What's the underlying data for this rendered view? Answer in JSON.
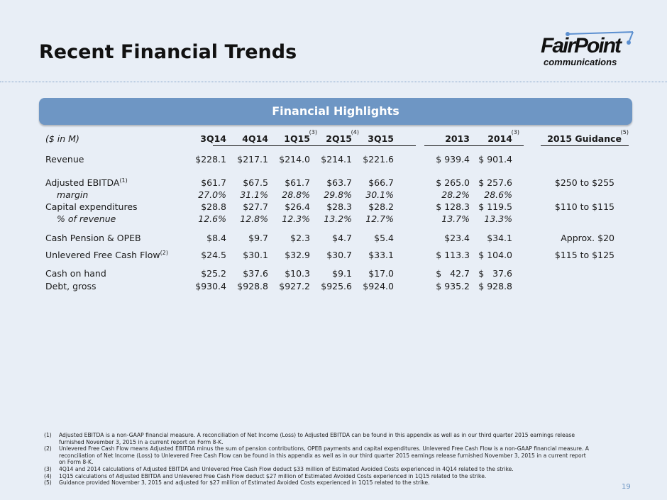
{
  "title": "Recent Financial Trends",
  "logo": {
    "text_main": "FairPoint",
    "text_sub": "communications",
    "color_accent": "#5b8fd0"
  },
  "banner": "Financial Highlights",
  "table": {
    "unit_label": "($ in M)",
    "columns": [
      {
        "label": "3Q14",
        "note": ""
      },
      {
        "label": "4Q14",
        "note": ""
      },
      {
        "label": "1Q15",
        "note": "(3)"
      },
      {
        "label": "2Q15",
        "note": "(4)"
      },
      {
        "label": "3Q15",
        "note": ""
      },
      {
        "label": "2013",
        "note": ""
      },
      {
        "label": "2014",
        "note": "(3)"
      },
      {
        "label": "2015 Guidance",
        "note": "(5)"
      }
    ],
    "rows": [
      {
        "label": "Revenue",
        "note": "",
        "italic": false,
        "values": [
          "$228.1",
          "$217.1",
          "$214.0",
          "$214.1",
          "$221.6",
          "$ 939.4",
          "$ 901.4",
          ""
        ]
      },
      {
        "label": "Adjusted EBITDA",
        "note": "(1)",
        "italic": false,
        "values": [
          "$61.7",
          "$67.5",
          "$61.7",
          "$63.7",
          "$66.7",
          "$ 265.0",
          "$ 257.6",
          "$250 to $255"
        ]
      },
      {
        "label": "margin",
        "note": "",
        "italic": true,
        "values": [
          "27.0%",
          "31.1%",
          "28.8%",
          "29.8%",
          "30.1%",
          "28.2%",
          "28.6%",
          ""
        ]
      },
      {
        "label": "Capital expenditures",
        "note": "",
        "italic": false,
        "values": [
          "$28.8",
          "$27.7",
          "$26.4",
          "$28.3",
          "$28.2",
          "$ 128.3",
          "$ 119.5",
          "$110 to $115"
        ]
      },
      {
        "label": "% of revenue",
        "note": "",
        "italic": true,
        "values": [
          "12.6%",
          "12.8%",
          "12.3%",
          "13.2%",
          "12.7%",
          "13.7%",
          "13.3%",
          ""
        ]
      },
      {
        "label": "Cash Pension & OPEB",
        "note": "",
        "italic": false,
        "values": [
          "$8.4",
          "$9.7",
          "$2.3",
          "$4.7",
          "$5.4",
          "$23.4",
          "$34.1",
          "Approx. $20"
        ]
      },
      {
        "label": "Unlevered Free Cash Flow",
        "note": "(2)",
        "italic": false,
        "values": [
          "$24.5",
          "$30.1",
          "$32.9",
          "$30.7",
          "$33.1",
          "$ 113.3",
          "$ 104.0",
          "$115 to $125"
        ]
      },
      {
        "label": "Cash on hand",
        "note": "",
        "italic": false,
        "values": [
          "$25.2",
          "$37.6",
          "$10.3",
          "$9.1",
          "$17.0",
          "$   42.7",
          "$   37.6",
          ""
        ]
      },
      {
        "label": "Debt, gross",
        "note": "",
        "italic": false,
        "values": [
          "$930.4",
          "$928.8",
          "$927.2",
          "$925.6",
          "$924.0",
          "$ 935.2",
          "$ 928.8",
          ""
        ]
      }
    ]
  },
  "footnotes": [
    {
      "num": "(1)",
      "text": "Adjusted EBITDA is a non-GAAP financial measure. A reconciliation of Net Income (Loss) to Adjusted EBITDA  can be found in this appendix as well as in our third quarter 2015 earnings release furnished November 3, 2015 in a current report on Form 8-K."
    },
    {
      "num": "(2)",
      "text": "Unlevered Free Cash Flow means Adjusted EBITDA minus the sum of pension contributions, OPEB payments and capital expenditures. Unlevered Free Cash Flow is a non-GAAP financial measure. A reconciliation of Net Income (Loss) to Unlevered Free Cash Flow can be found in this appendix as well as in our third quarter 2015 earnings release furnished November 3, 2015 in a current report on Form 8-K."
    },
    {
      "num": "(3)",
      "text": "4Q14  and 2014 calculations of Adjusted EBITDA and Unlevered Free Cash Flow deduct $33 million of Estimated Avoided Costs experienced in 4Q14 related to the strike."
    },
    {
      "num": "(4)",
      "text": "1Q15  calculations of Adjusted EBITDA and Unlevered Free Cash Flow deduct $27 million of Estimated Avoided Costs experienced in 1Q15 related to the strike."
    },
    {
      "num": "(5)",
      "text": "Guidance provided November 3, 2015 and adjusted for $27 million of Estimated Avoided Costs experienced in 1Q15 related to the strike."
    }
  ],
  "page_number": "19"
}
